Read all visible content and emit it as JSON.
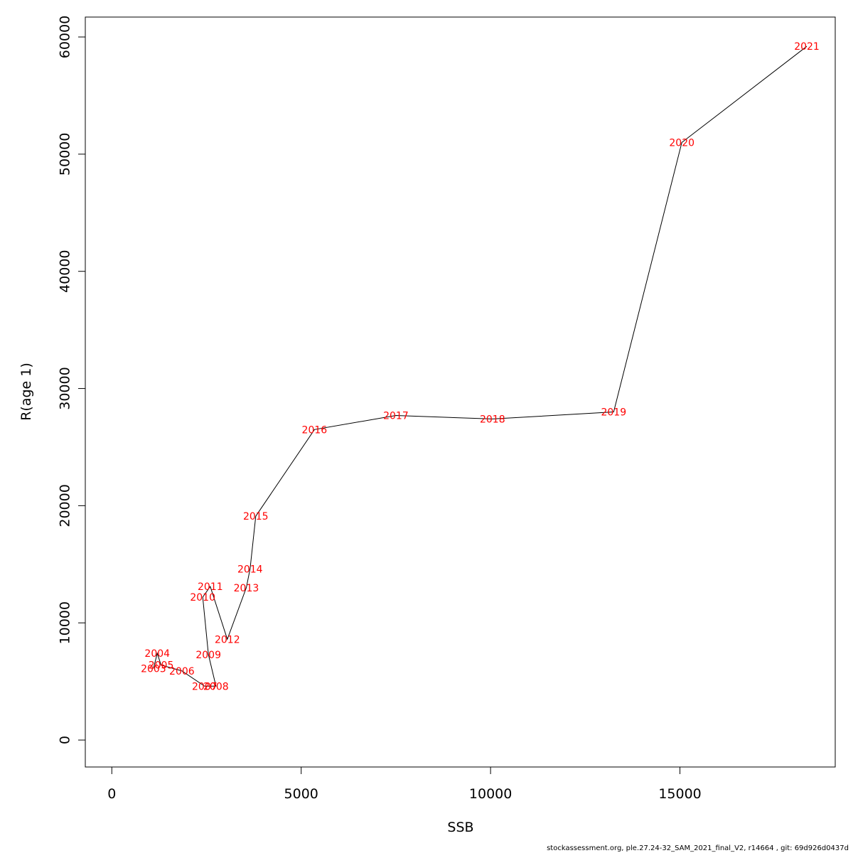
{
  "chart_data": {
    "type": "line",
    "xlabel": "SSB",
    "ylabel": "R(age 1)",
    "xlim": [
      -700,
      19100
    ],
    "ylim": [
      -2300,
      61700
    ],
    "xticks": [
      0,
      5000,
      10000,
      15000
    ],
    "yticks": [
      0,
      10000,
      20000,
      30000,
      40000,
      50000,
      60000
    ],
    "grid": false,
    "points": [
      {
        "year": "2003",
        "x": 1100,
        "y": 6100
      },
      {
        "year": "2004",
        "x": 1200,
        "y": 7400
      },
      {
        "year": "2005",
        "x": 1300,
        "y": 6400
      },
      {
        "year": "2006",
        "x": 1850,
        "y": 5900
      },
      {
        "year": "2007",
        "x": 2450,
        "y": 4600
      },
      {
        "year": "2008",
        "x": 2750,
        "y": 4600
      },
      {
        "year": "2009",
        "x": 2550,
        "y": 7300
      },
      {
        "year": "2010",
        "x": 2400,
        "y": 12200
      },
      {
        "year": "2011",
        "x": 2600,
        "y": 13100
      },
      {
        "year": "2012",
        "x": 3050,
        "y": 8600
      },
      {
        "year": "2013",
        "x": 3550,
        "y": 13000
      },
      {
        "year": "2014",
        "x": 3650,
        "y": 14600
      },
      {
        "year": "2015",
        "x": 3800,
        "y": 19100
      },
      {
        "year": "2016",
        "x": 5350,
        "y": 26500
      },
      {
        "year": "2017",
        "x": 7500,
        "y": 27700
      },
      {
        "year": "2018",
        "x": 10050,
        "y": 27400
      },
      {
        "year": "2019",
        "x": 13250,
        "y": 28000
      },
      {
        "year": "2020",
        "x": 15050,
        "y": 51000
      },
      {
        "year": "2021",
        "x": 18350,
        "y": 59200
      }
    ],
    "line_color": "#000000",
    "label_color": "#ff0000"
  },
  "footer": "stockassessment.org, ple.27.24-32_SAM_2021_final_V2, r14664 , git: 69d926d0437d"
}
